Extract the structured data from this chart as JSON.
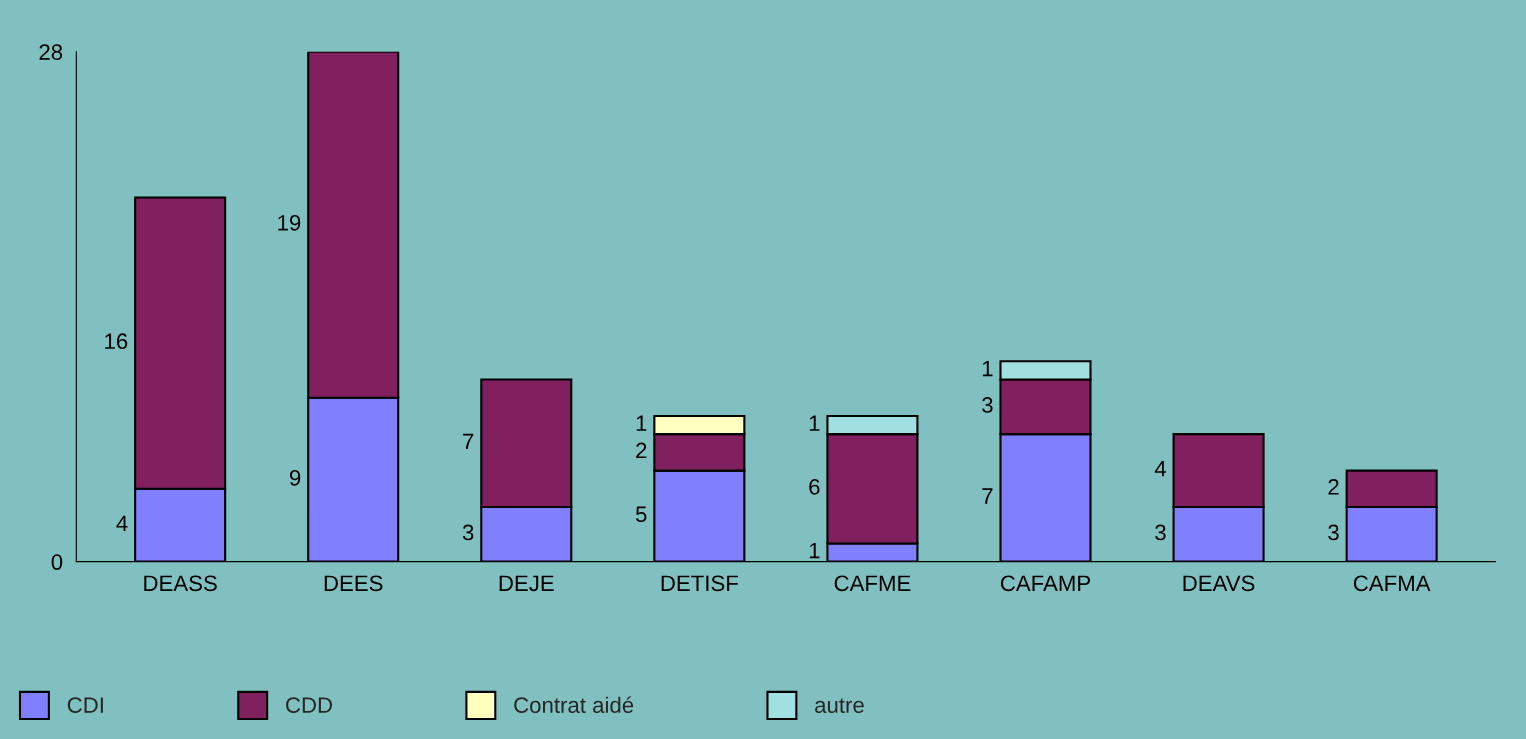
{
  "chart_data": {
    "type": "bar",
    "stacked": true,
    "categories": [
      "DEASS",
      "DEES",
      "DEJE",
      "DETISF",
      "CAFME",
      "CAFAMP",
      "DEAVS",
      "CAFMA"
    ],
    "series": [
      {
        "name": "CDI",
        "color": "#8080ff",
        "values": [
          4,
          9,
          3,
          5,
          1,
          7,
          3,
          3
        ]
      },
      {
        "name": "CDD",
        "color": "#80205f",
        "values": [
          16,
          19,
          7,
          2,
          6,
          3,
          4,
          2
        ]
      },
      {
        "name": "Contrat aidé",
        "color": "#ffffc0",
        "values": [
          null,
          null,
          null,
          1,
          null,
          null,
          null,
          null
        ]
      },
      {
        "name": "autre",
        "color": "#a0e0e0",
        "values": [
          null,
          null,
          null,
          null,
          1,
          1,
          null,
          null
        ]
      }
    ],
    "ylim": [
      0,
      28
    ],
    "yticks": [
      0,
      28
    ],
    "grid": false,
    "legend": "bottom",
    "data_labels": true
  }
}
